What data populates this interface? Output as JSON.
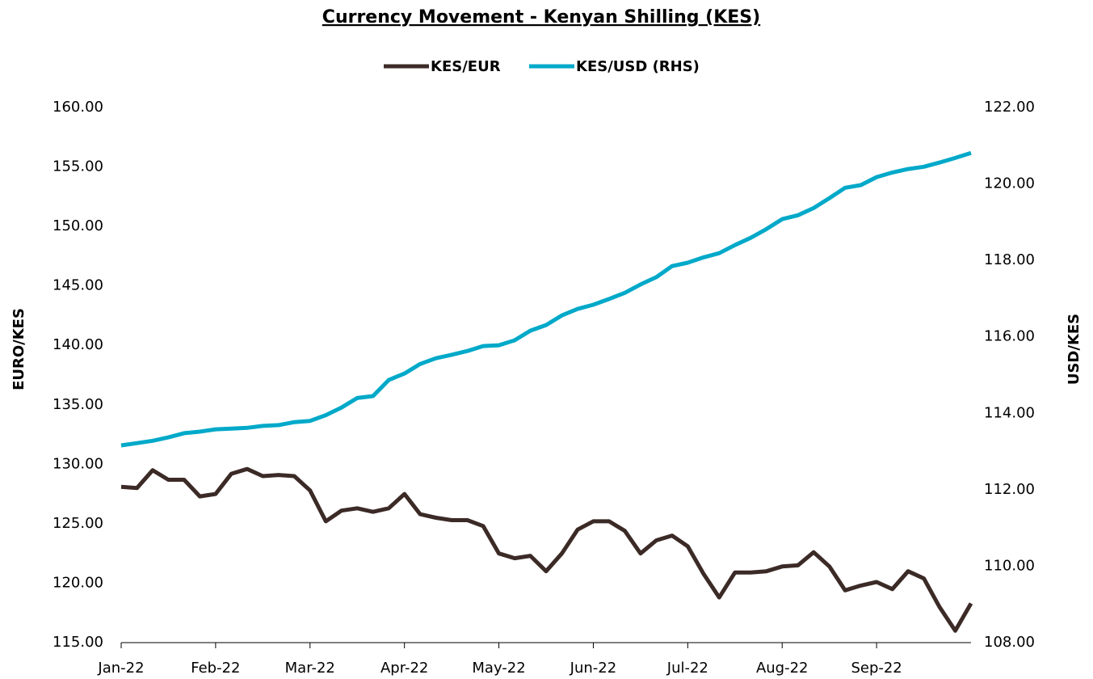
{
  "chart_data": {
    "type": "line",
    "title": "Currency Movement - Kenyan Shilling (KES)",
    "ylabel": "EURO/KES",
    "y2label": "USD/KES",
    "categories": [
      "Jan-22",
      null,
      null,
      null,
      null,
      null,
      "Feb-22",
      null,
      null,
      null,
      null,
      null,
      "Mar-22",
      null,
      null,
      null,
      null,
      null,
      "Apr-22",
      null,
      null,
      null,
      null,
      null,
      "May-22",
      null,
      null,
      null,
      null,
      null,
      "Jun-22",
      null,
      null,
      null,
      null,
      null,
      "Jul-22",
      null,
      null,
      null,
      null,
      null,
      "Aug-22",
      null,
      null,
      null,
      null,
      null,
      "Sep-22",
      null,
      null,
      null,
      null,
      null,
      null
    ],
    "series": [
      {
        "name": "KES/EUR",
        "color": "#3b2a26",
        "axis": "y",
        "values": [
          128.1,
          128.0,
          129.5,
          128.7,
          128.7,
          127.3,
          127.5,
          129.2,
          129.6,
          129.0,
          129.1,
          129.0,
          127.8,
          125.2,
          126.1,
          126.3,
          126.0,
          126.3,
          127.5,
          125.8,
          125.5,
          125.3,
          125.3,
          124.8,
          122.5,
          122.1,
          122.3,
          121.0,
          122.5,
          124.5,
          125.2,
          125.2,
          124.4,
          122.5,
          123.6,
          124.0,
          123.1,
          120.8,
          118.8,
          120.9,
          120.9,
          121.0,
          121.4,
          121.5,
          122.6,
          121.4,
          119.4,
          119.8,
          120.1,
          119.5,
          121.0,
          120.4,
          118.0,
          116.0,
          118.3
        ]
      },
      {
        "name": "KES/USD (RHS)",
        "color": "#00a9c9",
        "axis": "y2",
        "values": [
          113.16,
          113.22,
          113.28,
          113.37,
          113.48,
          113.52,
          113.58,
          113.6,
          113.62,
          113.67,
          113.69,
          113.77,
          113.8,
          113.95,
          114.15,
          114.4,
          114.45,
          114.87,
          115.04,
          115.29,
          115.44,
          115.53,
          115.63,
          115.76,
          115.78,
          115.91,
          116.16,
          116.31,
          116.56,
          116.73,
          116.84,
          116.99,
          117.15,
          117.37,
          117.56,
          117.85,
          117.94,
          118.08,
          118.19,
          118.4,
          118.59,
          118.82,
          119.08,
          119.18,
          119.37,
          119.63,
          119.9,
          119.97,
          120.18,
          120.3,
          120.39,
          120.45,
          120.56,
          120.68,
          120.81
        ]
      }
    ],
    "ylim": [
      115,
      160
    ],
    "yticks": [
      {
        "value": 115,
        "label": "115.00"
      },
      {
        "value": 120,
        "label": "120.00"
      },
      {
        "value": 125,
        "label": "125.00"
      },
      {
        "value": 130,
        "label": "130.00"
      },
      {
        "value": 135,
        "label": "135.00"
      },
      {
        "value": 140,
        "label": "140.00"
      },
      {
        "value": 145,
        "label": "145.00"
      },
      {
        "value": 150,
        "label": "150.00"
      },
      {
        "value": 155,
        "label": "155.00"
      },
      {
        "value": 160,
        "label": "160.00"
      }
    ],
    "y2lim": [
      108,
      122
    ],
    "y2ticks": [
      {
        "value": 108,
        "label": "108.00"
      },
      {
        "value": 110,
        "label": "110.00"
      },
      {
        "value": 112,
        "label": "112.00"
      },
      {
        "value": 114,
        "label": "114.00"
      },
      {
        "value": 116,
        "label": "116.00"
      },
      {
        "value": 118,
        "label": "118.00"
      },
      {
        "value": 120,
        "label": "120.00"
      },
      {
        "value": 122,
        "label": "122.00"
      }
    ],
    "grid": false,
    "legend": "top"
  }
}
